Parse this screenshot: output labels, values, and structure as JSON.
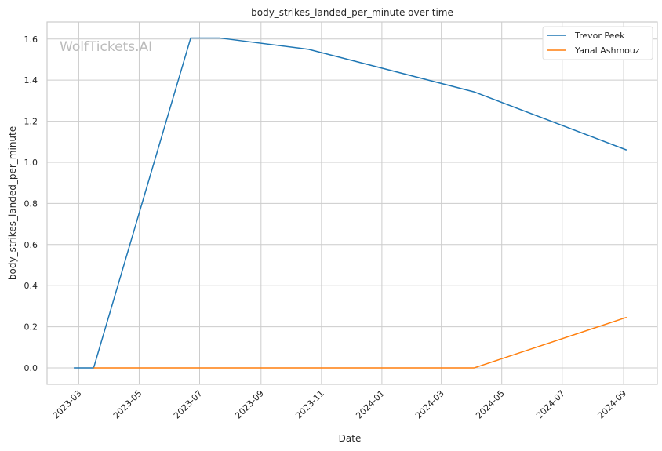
{
  "chart_data": {
    "type": "line",
    "title": "body_strikes_landed_per_minute over time",
    "xlabel": "Date",
    "ylabel": "body_strikes_landed_per_minute",
    "watermark": "WolfTickets.AI",
    "xlim": [
      "2023-01-28",
      "2024-10-05"
    ],
    "ylim": [
      -0.08,
      1.683
    ],
    "grid": true,
    "legend_placement": "top-right",
    "xticks": [
      "2023-03",
      "2023-05",
      "2023-07",
      "2023-09",
      "2023-11",
      "2024-01",
      "2024-03",
      "2024-05",
      "2024-07",
      "2024-09"
    ],
    "yticks": [
      "0.0",
      "0.2",
      "0.4",
      "0.6",
      "0.8",
      "1.0",
      "1.2",
      "1.4",
      "1.6"
    ],
    "series": [
      {
        "name": "Trevor Peek",
        "color": "#1f77b4",
        "points": [
          [
            "2023-02-24",
            0
          ],
          [
            "2023-03-16",
            0
          ],
          [
            "2023-06-22",
            1.605
          ],
          [
            "2023-07-21",
            1.605
          ],
          [
            "2023-10-19",
            1.55
          ],
          [
            "2024-04-03",
            1.343
          ],
          [
            "2024-09-04",
            1.06
          ]
        ]
      },
      {
        "name": "Yanal Ashmouz",
        "color": "#ff7f0e",
        "points": [
          [
            "2023-03-16",
            0
          ],
          [
            "2024-04-03",
            0
          ],
          [
            "2024-09-04",
            0.246
          ]
        ]
      }
    ]
  }
}
